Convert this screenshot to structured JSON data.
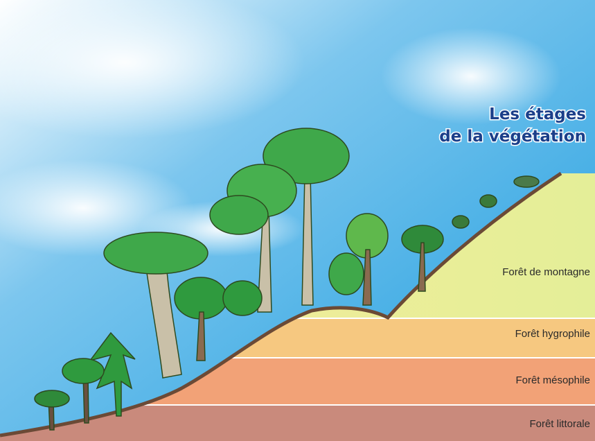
{
  "title": {
    "line1": "Les étages",
    "line2": "de la végétation"
  },
  "zones": [
    "Forêt de montagne",
    "Forêt hygrophile",
    "Forêt mésophile",
    "Forêt littorale"
  ]
}
